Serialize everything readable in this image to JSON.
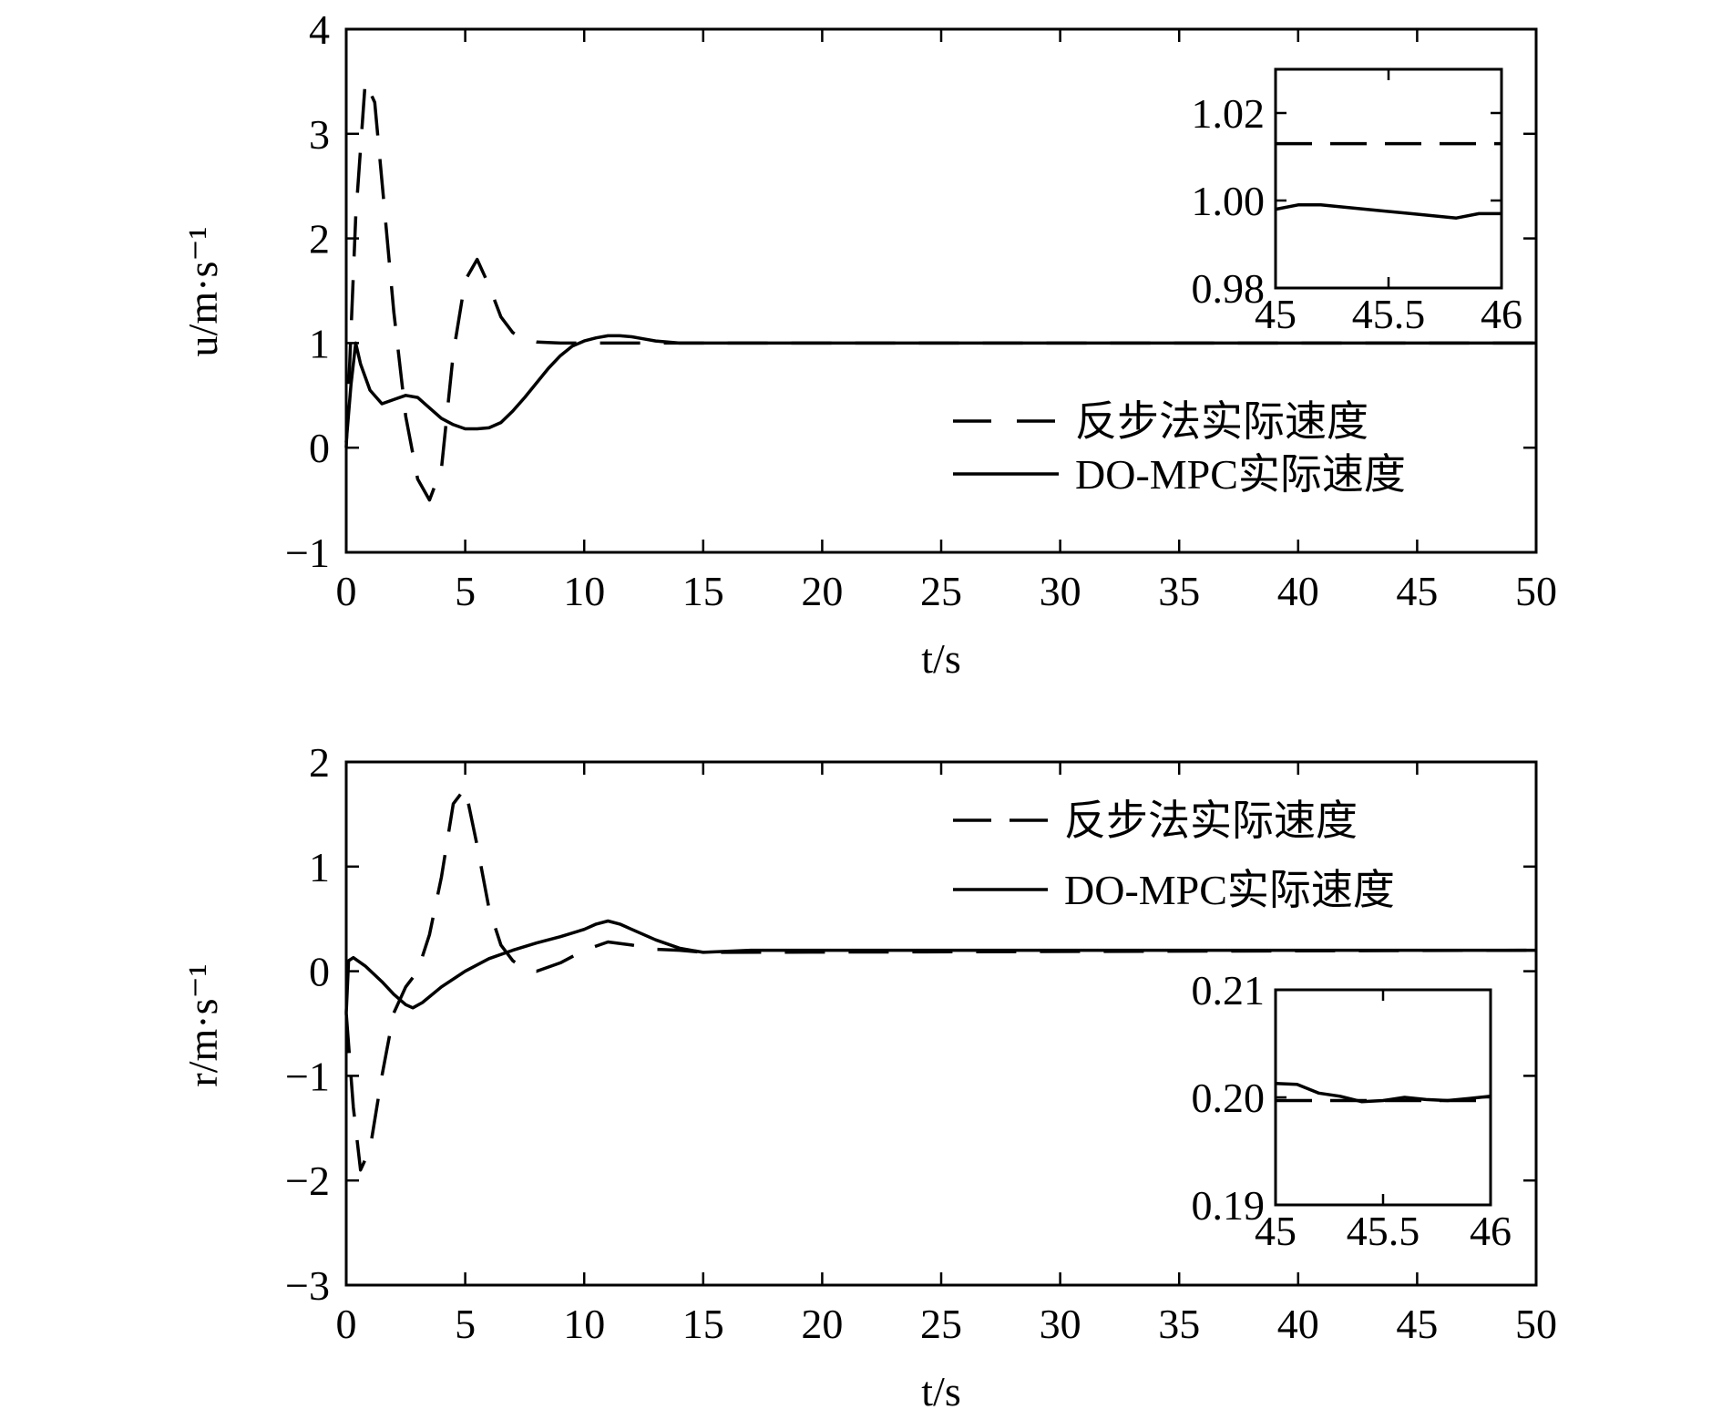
{
  "chart_data": [
    {
      "type": "line",
      "xlabel": "t/s",
      "ylabel": "u/m·s⁻¹",
      "xlim": [
        0,
        50
      ],
      "ylim": [
        -1,
        4
      ],
      "xticks": [
        "0",
        "5",
        "10",
        "15",
        "20",
        "25",
        "30",
        "35",
        "40",
        "45",
        "50"
      ],
      "yticks": [
        "−1",
        "0",
        "1",
        "2",
        "3",
        "4"
      ],
      "legend_position": "right",
      "series": [
        {
          "name": "反步法实际速度",
          "style": "dashed",
          "x": [
            0,
            0.4,
            0.8,
            1.2,
            1.6,
            2.0,
            2.5,
            3.0,
            3.5,
            4.0,
            4.5,
            5.0,
            5.5,
            6.0,
            6.5,
            7.0,
            7.5,
            8.0,
            9.0,
            10.0,
            11.0,
            12.0,
            14.0,
            20.0,
            50.0
          ],
          "y": [
            0.0,
            2.2,
            3.5,
            3.3,
            2.3,
            1.3,
            0.3,
            -0.3,
            -0.5,
            -0.2,
            0.9,
            1.6,
            1.8,
            1.55,
            1.25,
            1.1,
            1.03,
            1.01,
            1.0,
            1.0,
            1.0,
            1.0,
            1.0,
            1.0,
            1.0
          ]
        },
        {
          "name": "DO-MPC实际速度",
          "style": "solid",
          "x": [
            0,
            0.2,
            0.4,
            0.6,
            1.0,
            1.5,
            2.0,
            2.5,
            3.0,
            3.5,
            4.0,
            4.5,
            5.0,
            5.5,
            6.0,
            6.5,
            7.0,
            7.5,
            8.0,
            8.5,
            9.0,
            9.5,
            10.0,
            10.5,
            11.0,
            11.5,
            12.0,
            12.5,
            13.0,
            14.0,
            15.0,
            50.0
          ],
          "y": [
            0.05,
            0.6,
            1.0,
            0.8,
            0.55,
            0.42,
            0.46,
            0.5,
            0.48,
            0.38,
            0.28,
            0.22,
            0.18,
            0.18,
            0.19,
            0.24,
            0.35,
            0.48,
            0.62,
            0.76,
            0.88,
            0.97,
            1.02,
            1.05,
            1.07,
            1.07,
            1.06,
            1.04,
            1.02,
            1.0,
            1.0,
            1.0
          ]
        }
      ],
      "inset": {
        "xlim": [
          45,
          46
        ],
        "ylim": [
          0.98,
          1.03
        ],
        "xticks": [
          "45",
          "45.5",
          "46"
        ],
        "yticks": [
          "0.98",
          "1.00",
          "1.02"
        ],
        "series": [
          {
            "style": "dashed",
            "x": [
              45,
              46
            ],
            "y": [
              1.013,
              1.013
            ]
          },
          {
            "style": "solid",
            "x": [
              45,
              45.1,
              45.2,
              45.4,
              45.6,
              45.8,
              45.9,
              46
            ],
            "y": [
              0.998,
              0.999,
              0.999,
              0.998,
              0.997,
              0.996,
              0.997,
              0.997
            ]
          }
        ]
      }
    },
    {
      "type": "line",
      "xlabel": "t/s",
      "ylabel": "r/m·s⁻¹",
      "xlim": [
        0,
        50
      ],
      "ylim": [
        -3,
        2
      ],
      "xticks": [
        "0",
        "5",
        "10",
        "15",
        "20",
        "25",
        "30",
        "35",
        "40",
        "45",
        "50"
      ],
      "yticks": [
        "−3",
        "−2",
        "−1",
        "0",
        "1",
        "2"
      ],
      "legend_position": "top-right",
      "series": [
        {
          "name": "反步法实际速度",
          "style": "dashed",
          "x": [
            0,
            0.3,
            0.6,
            1.0,
            1.5,
            2.0,
            2.5,
            3.0,
            3.5,
            4.0,
            4.5,
            5.0,
            5.5,
            6.0,
            6.5,
            7.0,
            7.5,
            8.0,
            9.0,
            10.0,
            11.0,
            12.0,
            13.0,
            14.0,
            15.0,
            16.0,
            50.0
          ],
          "y": [
            -0.4,
            -1.3,
            -1.9,
            -1.7,
            -1.0,
            -0.4,
            -0.15,
            0.0,
            0.35,
            0.9,
            1.6,
            1.75,
            1.2,
            0.6,
            0.25,
            0.1,
            0.02,
            0.0,
            0.08,
            0.2,
            0.28,
            0.25,
            0.21,
            0.2,
            0.18,
            0.18,
            0.2
          ]
        },
        {
          "name": "DO-MPC实际速度",
          "style": "solid",
          "x": [
            0,
            0.1,
            0.3,
            0.8,
            1.5,
            2.0,
            2.5,
            2.8,
            3.2,
            4.0,
            5.0,
            6.0,
            7.0,
            8.0,
            9.0,
            10.0,
            10.5,
            11.0,
            11.5,
            12.0,
            13.0,
            14.0,
            15.0,
            16.0,
            17.0,
            18.0,
            50.0
          ],
          "y": [
            -0.4,
            0.1,
            0.13,
            0.05,
            -0.1,
            -0.22,
            -0.32,
            -0.35,
            -0.3,
            -0.15,
            0.0,
            0.12,
            0.2,
            0.27,
            0.33,
            0.4,
            0.45,
            0.48,
            0.45,
            0.4,
            0.3,
            0.22,
            0.18,
            0.19,
            0.2,
            0.2,
            0.2
          ]
        }
      ],
      "inset": {
        "xlim": [
          45,
          46
        ],
        "ylim": [
          0.19,
          0.21
        ],
        "xticks": [
          "45",
          "45.5",
          "46"
        ],
        "yticks": [
          "0.19",
          "0.20",
          "0.21"
        ],
        "series": [
          {
            "style": "dashed",
            "x": [
              45,
              46
            ],
            "y": [
              0.1997,
              0.1997
            ]
          },
          {
            "style": "solid",
            "x": [
              45,
              45.1,
              45.2,
              45.3,
              45.4,
              45.5,
              45.6,
              45.7,
              45.8,
              45.9,
              46
            ],
            "y": [
              0.2013,
              0.2012,
              0.2004,
              0.2001,
              0.1996,
              0.1997,
              0.2,
              0.1998,
              0.1997,
              0.1999,
              0.2001
            ]
          }
        ]
      }
    }
  ]
}
